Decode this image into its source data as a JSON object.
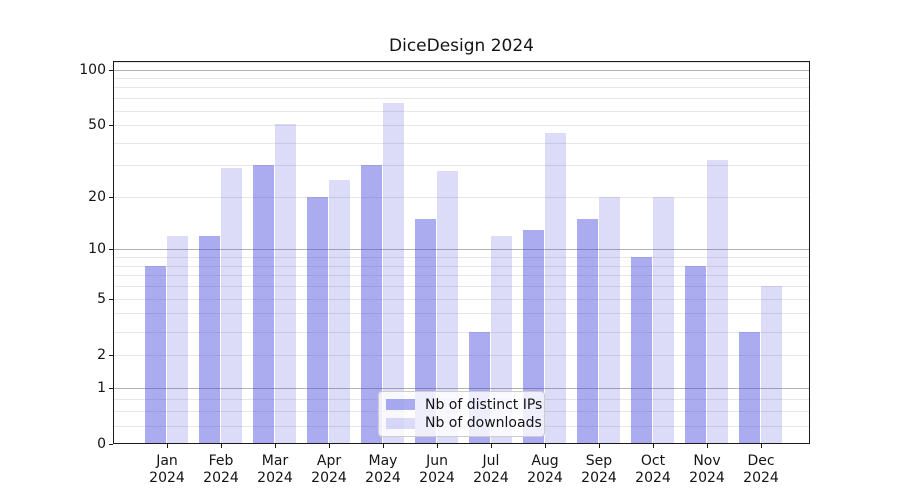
{
  "chart_data": {
    "type": "bar",
    "title": "DiceDesign 2024",
    "categories": [
      "Jan 2024",
      "Feb 2024",
      "Mar 2024",
      "Apr 2024",
      "May 2024",
      "Jun 2024",
      "Jul 2024",
      "Aug 2024",
      "Sep 2024",
      "Oct 2024",
      "Nov 2024",
      "Dec 2024"
    ],
    "series": [
      {
        "name": "Nb of distinct IPs",
        "color": "#abacf0",
        "values": [
          8,
          12,
          30,
          20,
          30,
          15,
          3,
          13,
          15,
          9,
          8,
          3
        ]
      },
      {
        "name": "Nb of downloads",
        "color": "#dcdcf8",
        "values": [
          12,
          29,
          51,
          25,
          66,
          28,
          12,
          45,
          20,
          20,
          32,
          6
        ]
      }
    ],
    "xlabel": "",
    "ylabel": "",
    "y_scale": "log1p",
    "ylim": [
      0,
      112
    ],
    "y_ticks_labeled": [
      0,
      1,
      2,
      5,
      10,
      20,
      50,
      100
    ],
    "y_gridlines_major": [
      1,
      10,
      100
    ],
    "y_gridlines_minor": [
      0.25,
      0.5,
      0.75,
      2,
      3,
      4,
      6,
      7,
      8,
      9,
      5,
      20,
      30,
      40,
      50,
      60,
      70,
      80,
      90,
      110
    ],
    "grid": true,
    "legend_position": "lower center"
  },
  "colors": {
    "bar_fills": [
      "rgba(68,68,221,0.45)",
      "rgba(68,68,221,0.19)"
    ],
    "grid_major": "#b2b2b2",
    "grid_minor": "#e7e7e7",
    "spine": "#1a1a1a",
    "text": "#141414",
    "legend_border": "#cccccc",
    "legend_bg": "rgba(255,255,255,0.8)"
  }
}
